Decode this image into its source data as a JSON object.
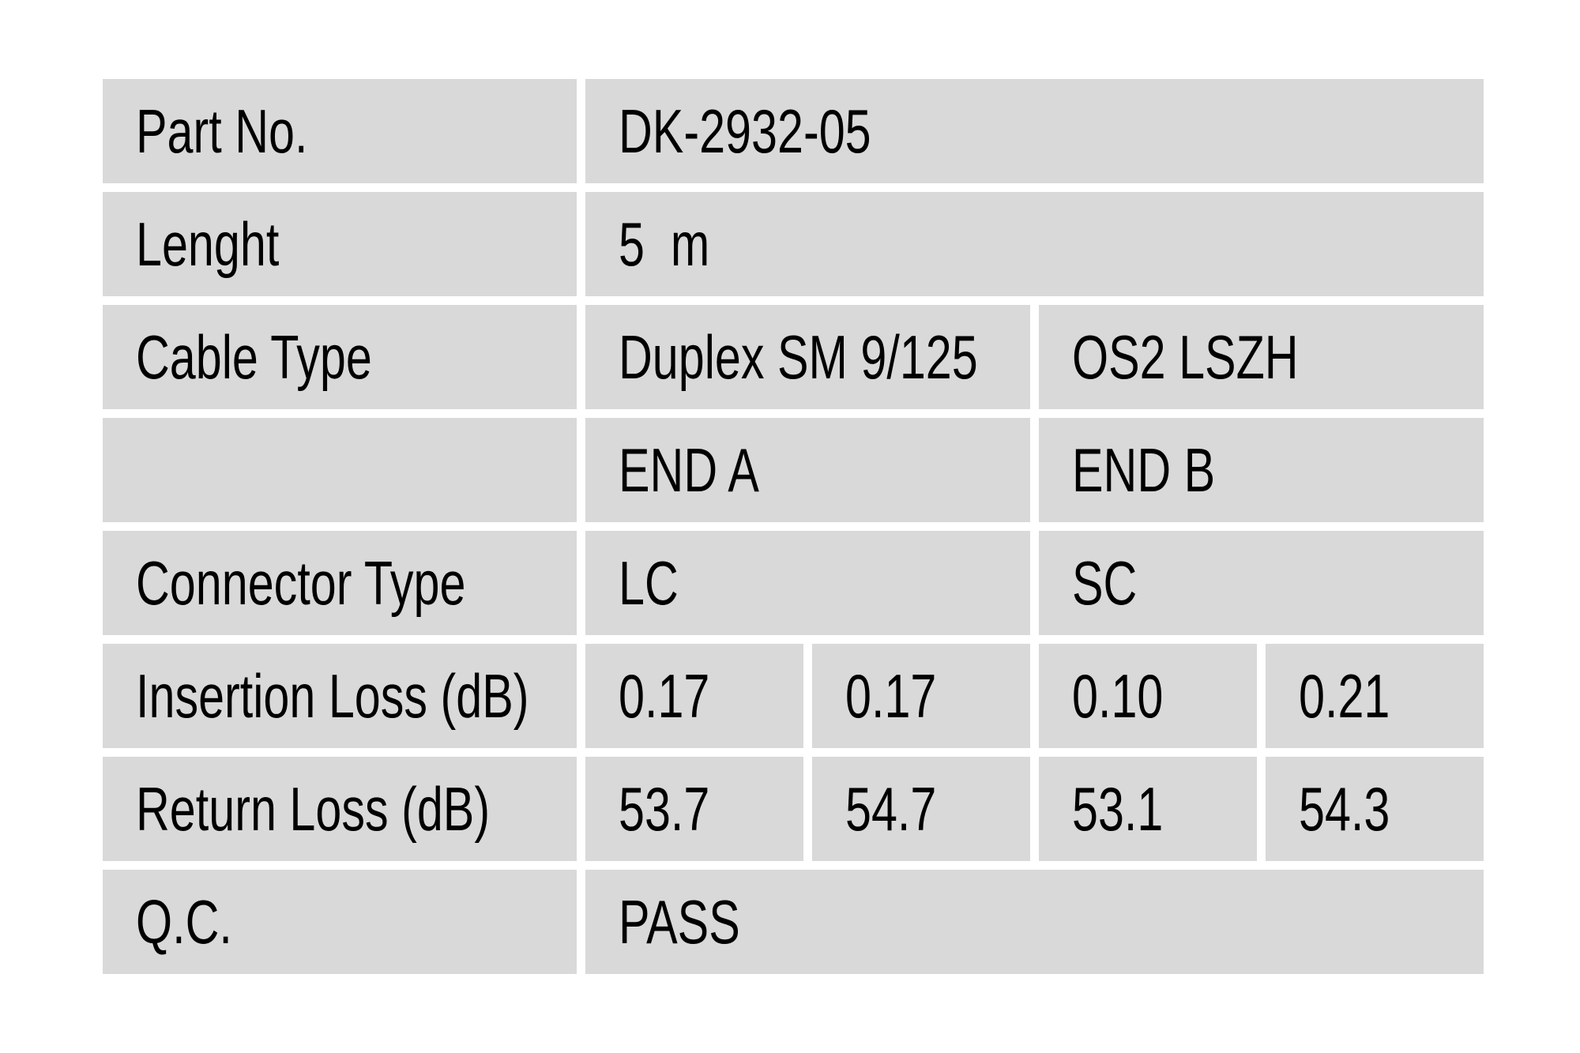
{
  "page": {
    "background": "#ffffff",
    "description": "Fiber optic patch cable quality-control label table"
  },
  "colors": {
    "cell_bg": "#d9d9d9",
    "gutter": "#ffffff",
    "text": "#000000"
  },
  "table": {
    "rows": [
      {
        "label": "Part No.",
        "cells": [
          {
            "text": "DK-2932-05"
          }
        ]
      },
      {
        "label": "Lenght",
        "cells": [
          {
            "text": "5  m"
          }
        ]
      },
      {
        "label": "Cable Type",
        "cells": [
          {
            "text": "Duplex SM 9/125"
          },
          {
            "text": "OS2 LSZH"
          }
        ]
      },
      {
        "label": "",
        "cells": [
          {
            "text": "END A"
          },
          {
            "text": "END B"
          }
        ]
      },
      {
        "label": "Connector Type",
        "cells": [
          {
            "text": "LC"
          },
          {
            "text": "SC"
          }
        ]
      },
      {
        "label": "Insertion Loss (dB)",
        "cells": [
          {
            "text": "0.17"
          },
          {
            "text": "0.17"
          },
          {
            "text": "0.10"
          },
          {
            "text": "0.21"
          }
        ]
      },
      {
        "label": "Return Loss (dB)",
        "cells": [
          {
            "text": "53.7"
          },
          {
            "text": "54.7"
          },
          {
            "text": "53.1"
          },
          {
            "text": "54.3"
          }
        ]
      },
      {
        "label": "Q.C.",
        "cells": [
          {
            "text": "PASS"
          }
        ]
      }
    ]
  }
}
